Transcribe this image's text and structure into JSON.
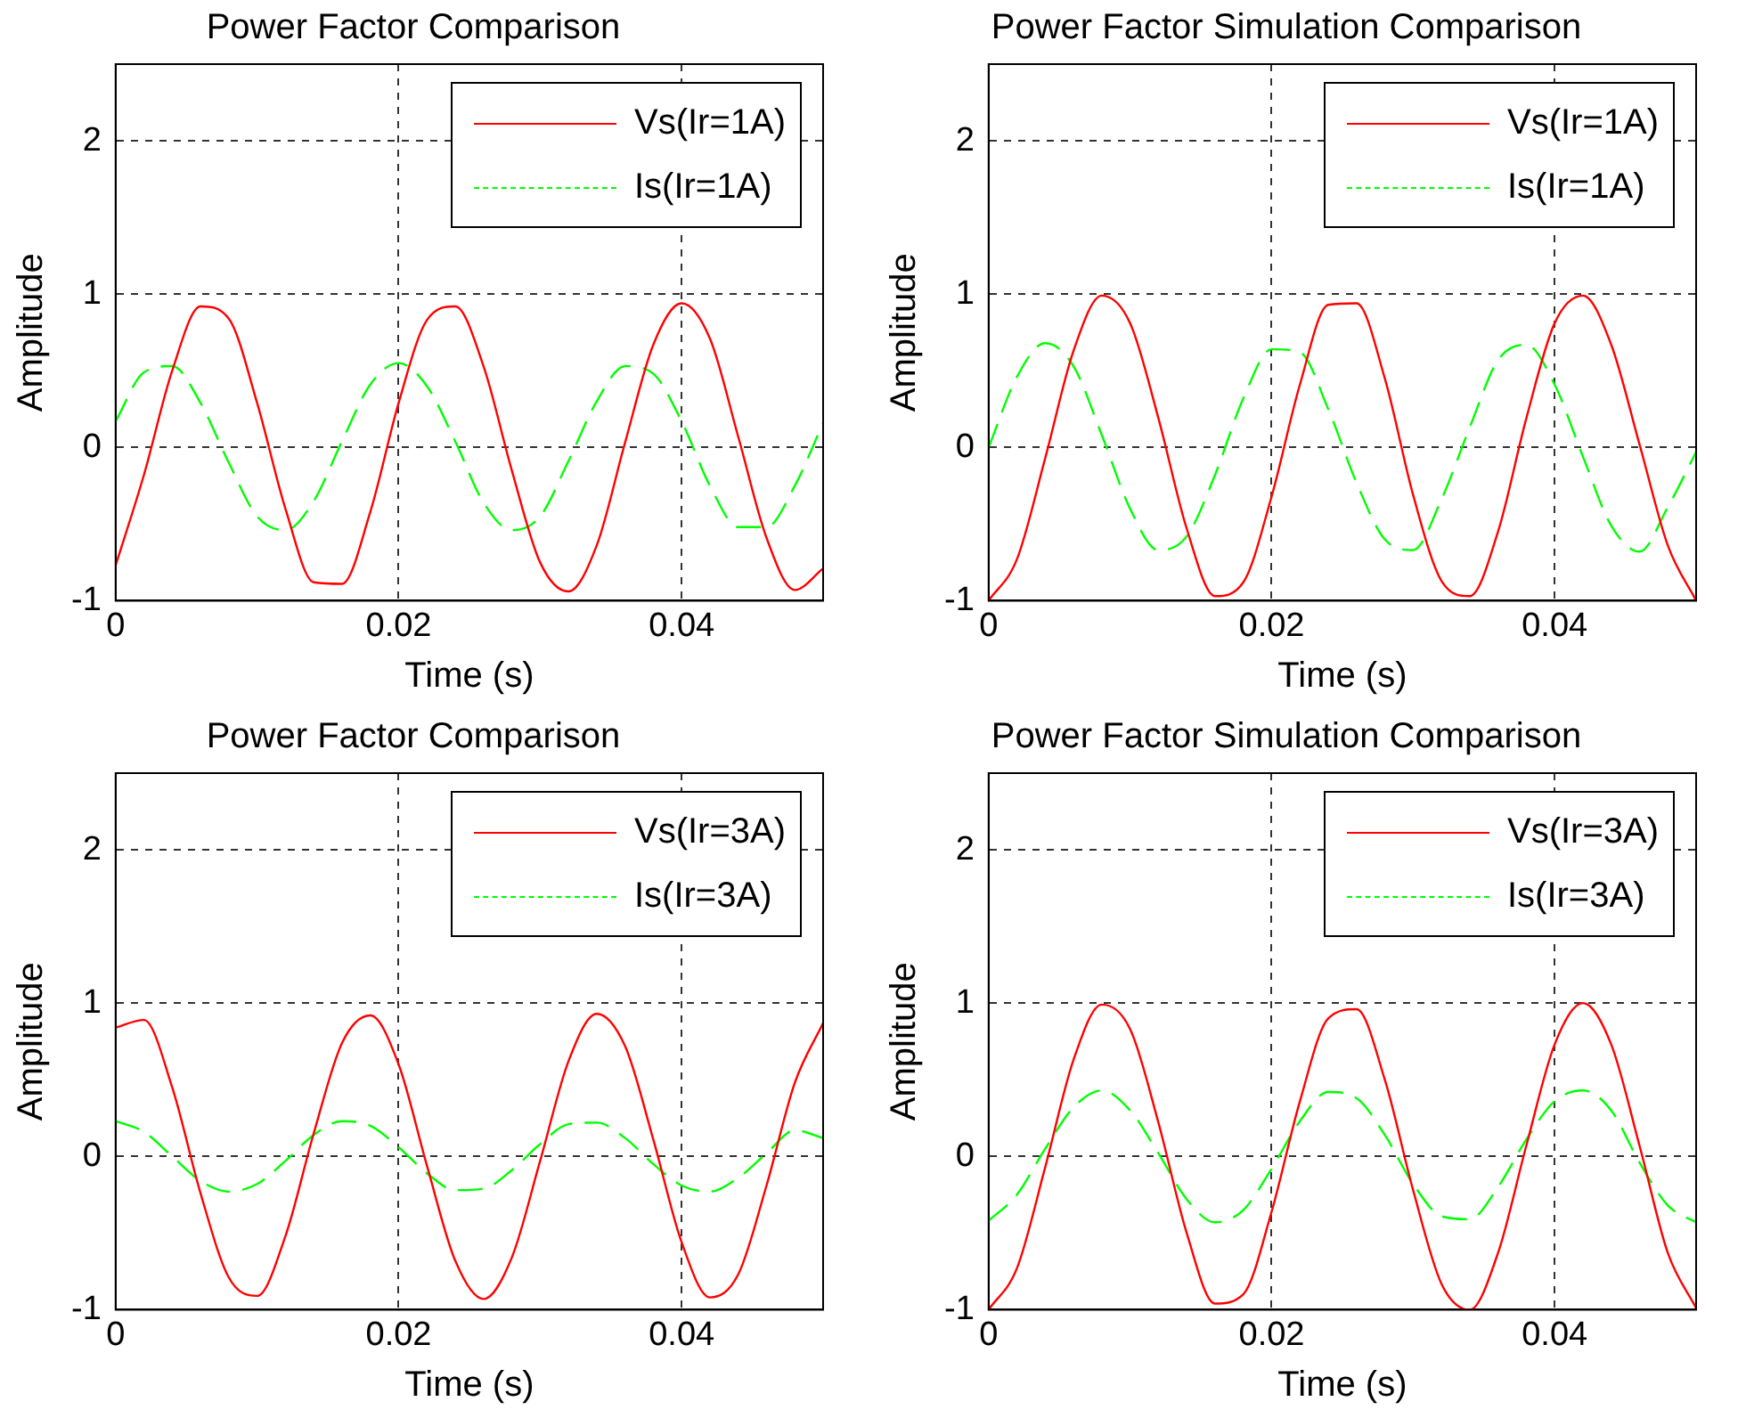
{
  "chart_data": [
    {
      "type": "line",
      "title": "Power Factor Comparison",
      "xlabel": "Time (s)",
      "ylabel": "Amplitude",
      "x": [
        0,
        0.002,
        0.004,
        0.006,
        0.008,
        0.01,
        0.012,
        0.014,
        0.016,
        0.018,
        0.02,
        0.022,
        0.024,
        0.026,
        0.028,
        0.03,
        0.032,
        0.034,
        0.036,
        0.038,
        0.04,
        0.042,
        0.044,
        0.046,
        0.048,
        0.05
      ],
      "xlim": [
        0,
        0.05
      ],
      "xticks": [
        0,
        0.02,
        0.04
      ],
      "ylim": [
        -1,
        2.5
      ],
      "yticks": [
        -1,
        0,
        1,
        2
      ],
      "grid": true,
      "legend": "top right",
      "marker": "none",
      "series": [
        {
          "name": "Vs(Ir=1A)",
          "color": "#ff0000",
          "line_style": "solid",
          "values": [
            -0.77,
            -0.18,
            0.5,
            0.92,
            0.84,
            0.29,
            -0.4,
            -0.88,
            -0.89,
            -0.42,
            0.29,
            0.83,
            0.92,
            0.53,
            -0.15,
            -0.75,
            -0.94,
            -0.64,
            0.03,
            0.67,
            0.94,
            0.71,
            0.07,
            -0.59,
            -0.93,
            -0.79
          ]
        },
        {
          "name": "Is(Ir=1A)",
          "color": "#00ff00",
          "line_style": "dashed",
          "values": [
            0.17,
            0.49,
            0.53,
            0.29,
            -0.1,
            -0.45,
            -0.54,
            -0.35,
            0.04,
            0.41,
            0.55,
            0.4,
            0.04,
            -0.36,
            -0.54,
            -0.45,
            -0.09,
            0.3,
            0.53,
            0.48,
            0.17,
            -0.25,
            -0.52,
            -0.52,
            -0.25,
            0.16
          ]
        }
      ]
    },
    {
      "type": "line",
      "title": "Power Factor Simulation Comparison",
      "xlabel": "Time (s)",
      "ylabel": "Amplitude",
      "x": [
        0,
        0.002,
        0.004,
        0.006,
        0.008,
        0.01,
        0.012,
        0.014,
        0.016,
        0.018,
        0.02,
        0.022,
        0.024,
        0.026,
        0.028,
        0.03,
        0.032,
        0.034,
        0.036,
        0.038,
        0.04,
        0.042,
        0.044,
        0.046,
        0.048,
        0.05
      ],
      "xlim": [
        0,
        0.05
      ],
      "xticks": [
        0,
        0.02,
        0.04
      ],
      "ylim": [
        -1,
        2.5
      ],
      "yticks": [
        -1,
        0,
        1,
        2
      ],
      "grid": true,
      "legend": "top right",
      "marker": "none",
      "series": [
        {
          "name": "Vs(Ir=1A)",
          "color": "#ff0000",
          "line_style": "solid",
          "values": [
            -1,
            -0.73,
            -0.07,
            0.63,
            0.99,
            0.81,
            0.19,
            -0.53,
            -0.97,
            -0.88,
            -0.32,
            0.41,
            0.93,
            0.94,
            0.45,
            -0.31,
            -0.87,
            -0.97,
            -0.55,
            0.19,
            0.81,
            0.99,
            0.67,
            0.02,
            -0.64,
            -1
          ]
        },
        {
          "name": "Is(Ir=1A)",
          "color": "#00ff00",
          "line_style": "dashed",
          "values": [
            0,
            0.46,
            0.68,
            0.53,
            0.08,
            -0.4,
            -0.67,
            -0.58,
            -0.18,
            0.32,
            0.64,
            0.62,
            0.25,
            -0.23,
            -0.6,
            -0.67,
            -0.34,
            0.13,
            0.57,
            0.67,
            0.41,
            -0.06,
            -0.51,
            -0.68,
            -0.39,
            -0.03
          ]
        }
      ]
    },
    {
      "type": "line",
      "title": "Power Factor Comparison",
      "xlabel": "Time (s)",
      "ylabel": "Amplitude",
      "x": [
        0,
        0.002,
        0.004,
        0.006,
        0.008,
        0.01,
        0.012,
        0.014,
        0.016,
        0.018,
        0.02,
        0.022,
        0.024,
        0.026,
        0.028,
        0.03,
        0.032,
        0.034,
        0.036,
        0.038,
        0.04,
        0.042,
        0.044,
        0.046,
        0.048,
        0.05
      ],
      "xlim": [
        0,
        0.05
      ],
      "xticks": [
        0,
        0.02,
        0.04
      ],
      "ylim": [
        -1,
        2.5
      ],
      "yticks": [
        -1,
        0,
        1,
        2
      ],
      "grid": true,
      "legend": "top right",
      "marker": "none",
      "series": [
        {
          "name": "Vs(Ir=3A)",
          "color": "#ff0000",
          "line_style": "solid",
          "values": [
            0.84,
            0.89,
            0.45,
            -0.24,
            -0.79,
            -0.91,
            -0.52,
            0.15,
            0.74,
            0.92,
            0.6,
            -0.06,
            -0.68,
            -0.93,
            -0.66,
            -0.03,
            0.62,
            0.93,
            0.72,
            0.11,
            -0.56,
            -0.92,
            -0.77,
            -0.19,
            0.48,
            0.87
          ]
        },
        {
          "name": "Is(Ir=3A)",
          "color": "#00ff00",
          "line_style": "dashed",
          "values": [
            0.23,
            0.16,
            0,
            -0.16,
            -0.23,
            -0.18,
            -0.03,
            0.14,
            0.23,
            0.2,
            0.06,
            -0.11,
            -0.22,
            -0.21,
            -0.09,
            0.08,
            0.21,
            0.22,
            0.12,
            -0.05,
            -0.19,
            -0.23,
            -0.14,
            0.02,
            0.17,
            0.12
          ]
        }
      ]
    },
    {
      "type": "line",
      "title": "Power Factor Simulation Comparison",
      "xlabel": "Time (s)",
      "ylabel": "Amplitude",
      "x": [
        0,
        0.002,
        0.004,
        0.006,
        0.008,
        0.01,
        0.012,
        0.014,
        0.016,
        0.018,
        0.02,
        0.022,
        0.024,
        0.026,
        0.028,
        0.03,
        0.032,
        0.034,
        0.036,
        0.038,
        0.04,
        0.042,
        0.044,
        0.046,
        0.048,
        0.05
      ],
      "xlim": [
        0,
        0.05
      ],
      "xticks": [
        0,
        0.02,
        0.04
      ],
      "ylim": [
        -1,
        2.5
      ],
      "yticks": [
        -1,
        0,
        1,
        2
      ],
      "grid": true,
      "legend": "top right",
      "marker": "none",
      "series": [
        {
          "name": "Vs(Ir=3A)",
          "color": "#ff0000",
          "line_style": "solid",
          "values": [
            -1,
            -0.73,
            -0.07,
            0.63,
            0.99,
            0.83,
            0.22,
            -0.5,
            -0.96,
            -0.9,
            -0.36,
            0.36,
            0.9,
            0.96,
            0.5,
            -0.22,
            -0.83,
            -1,
            -0.63,
            0.07,
            0.73,
            1,
            0.73,
            0.07,
            -0.63,
            -0.99
          ]
        },
        {
          "name": "Is(Ir=3A)",
          "color": "#00ff00",
          "line_style": "dashed",
          "values": [
            -0.42,
            -0.25,
            0.05,
            0.32,
            0.43,
            0.3,
            0.02,
            -0.28,
            -0.43,
            -0.35,
            -0.08,
            0.23,
            0.42,
            0.38,
            0.14,
            -0.18,
            -0.39,
            -0.41,
            -0.2,
            0.11,
            0.36,
            0.43,
            0.3,
            -0.04,
            -0.32,
            -0.43
          ]
        }
      ]
    }
  ]
}
